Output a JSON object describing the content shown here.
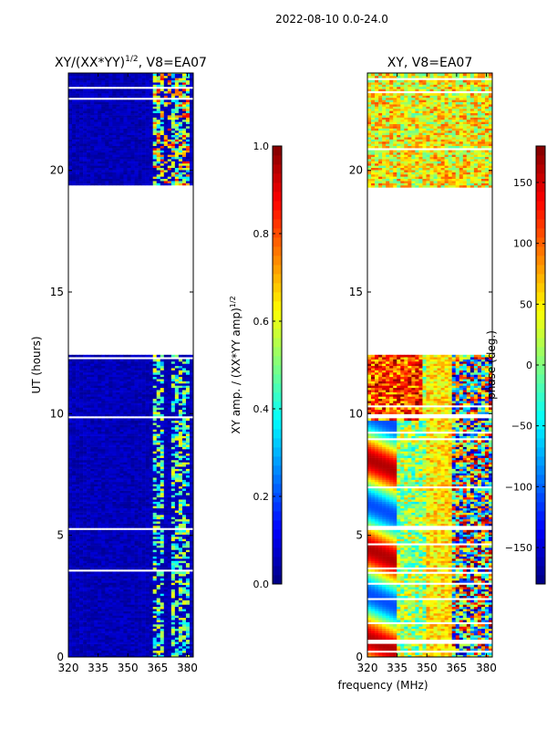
{
  "chart_data": {
    "suptitle": "2022-08-10 0.0-24.0",
    "shared_xlabel": "frequency (MHz)",
    "panels": [
      {
        "type": "heatmap",
        "title_main": "XY/(XX*YY)",
        "title_exp": "1/2",
        "title_suffix": ", V8=EA07",
        "ylabel": "UT (hours)",
        "xlim": [
          320,
          383
        ],
        "ylim": [
          0,
          24
        ],
        "xticks": [
          320,
          335,
          350,
          365,
          380
        ],
        "yticks": [
          0,
          5,
          10,
          15,
          20
        ],
        "colormap": "jet",
        "mode": "amplitude",
        "data_rows_utc": [
          [
            0.0,
            12.4
          ],
          [
            19.3,
            24.0
          ]
        ],
        "gap_utc": [
          12.4,
          19.3
        ],
        "colorbar": {
          "label_main": "XY amp. / (XX*YY amp)",
          "label_exp": "1/2",
          "vmin": 0.0,
          "vmax": 1.0,
          "ticks": [
            0.0,
            0.2,
            0.4,
            0.6,
            0.8,
            1.0
          ],
          "tick_labels": [
            "0.0",
            "0.2",
            "0.4",
            "0.6",
            "0.8",
            "1.0"
          ]
        }
      },
      {
        "type": "heatmap",
        "title_main": "XY, V8=EA07",
        "ylabel": "",
        "xlim": [
          320,
          383
        ],
        "ylim": [
          0,
          24
        ],
        "xticks": [
          320,
          335,
          350,
          365,
          380
        ],
        "yticks": [
          0,
          5,
          10,
          15,
          20
        ],
        "colormap": "jet",
        "mode": "phase",
        "data_rows_utc": [
          [
            0.0,
            12.4
          ],
          [
            19.3,
            24.0
          ]
        ],
        "gap_utc": [
          12.4,
          19.3
        ],
        "colorbar": {
          "label_main": "phase (deg.)",
          "vmin": -180,
          "vmax": 180,
          "ticks": [
            -150,
            -100,
            -50,
            0,
            50,
            100,
            150
          ],
          "tick_labels": [
            "−150",
            "−100",
            "−50",
            "0",
            "50",
            "100",
            "150"
          ]
        }
      }
    ]
  }
}
